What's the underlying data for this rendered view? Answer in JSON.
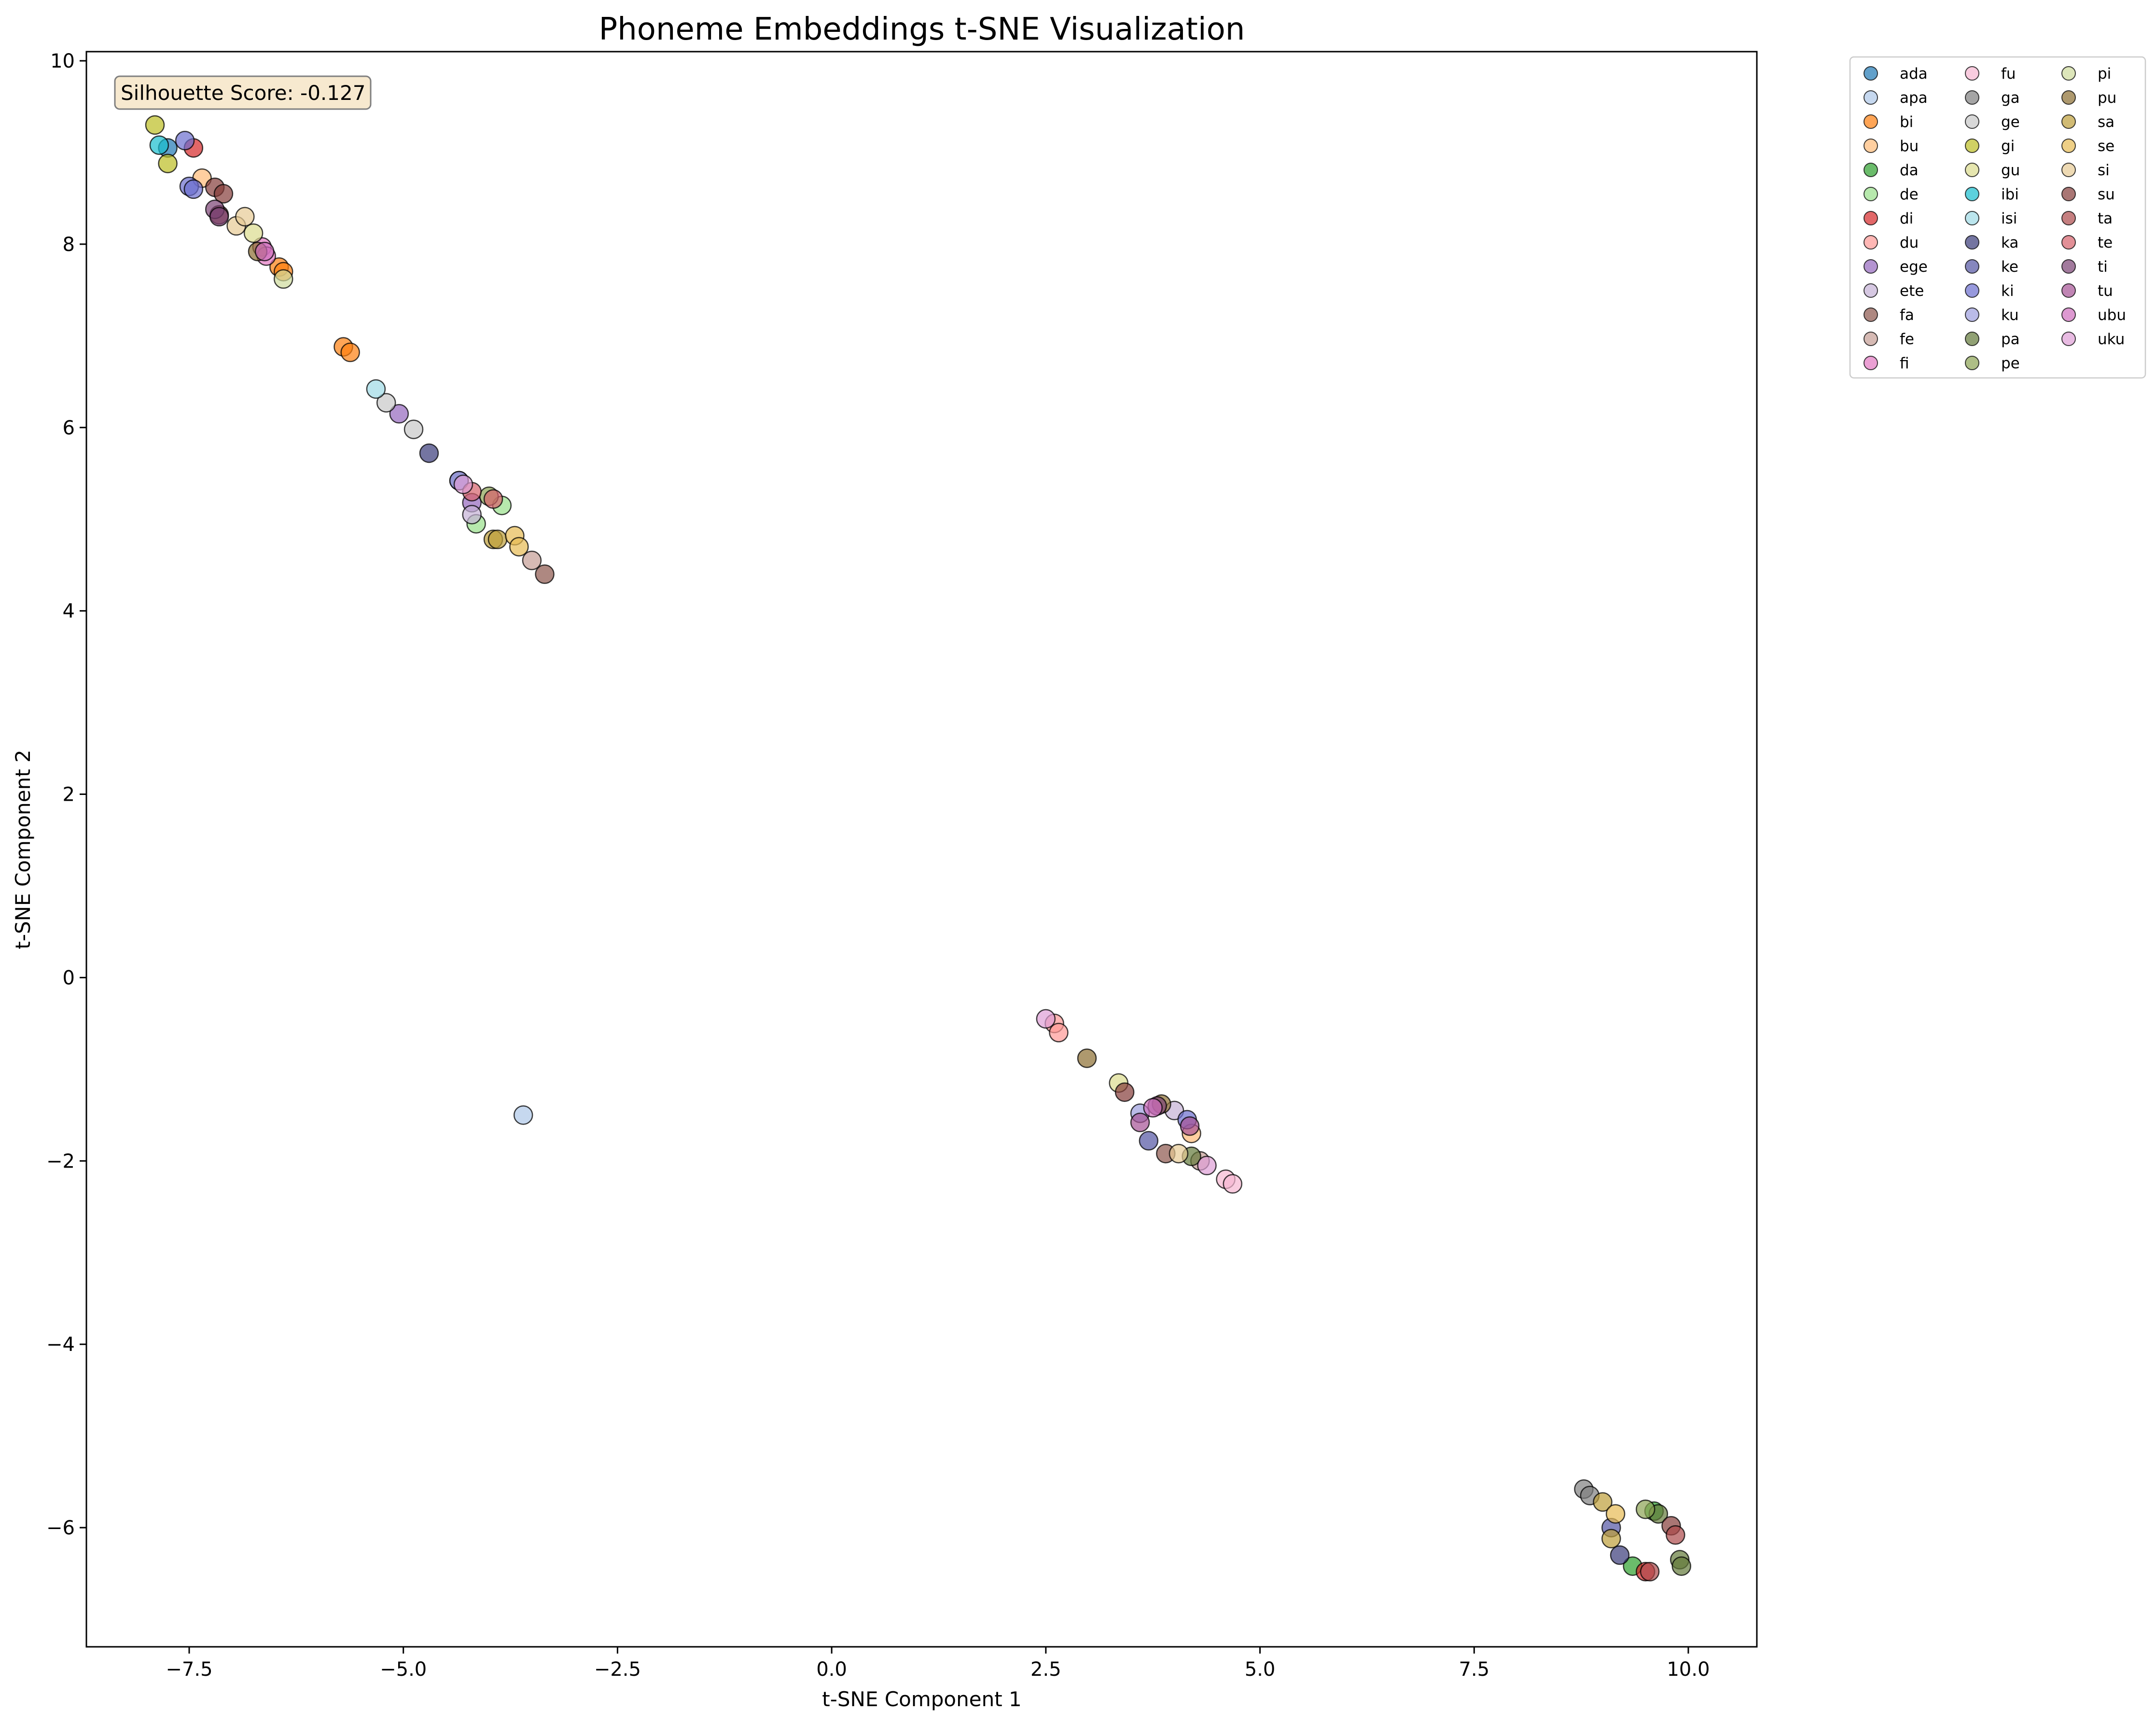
{
  "chart_data": {
    "type": "scatter",
    "title": "Phoneme Embeddings t-SNE Visualization",
    "xlabel": "t-SNE Component 1",
    "ylabel": "t-SNE Component 2",
    "xlim": [
      -8.7,
      10.8
    ],
    "ylim": [
      -7.3,
      10.1
    ],
    "xticks": [
      -7.5,
      -5.0,
      -2.5,
      0.0,
      2.5,
      5.0,
      7.5,
      10.0
    ],
    "xtick_labels": [
      "−7.5",
      "−5.0",
      "−2.5",
      "0.0",
      "2.5",
      "5.0",
      "7.5",
      "10.0"
    ],
    "yticks": [
      -6,
      -4,
      -2,
      0,
      2,
      4,
      6,
      8,
      10
    ],
    "ytick_labels": [
      "−6",
      "−4",
      "−2",
      "0",
      "2",
      "4",
      "6",
      "8",
      "10"
    ],
    "grid": false,
    "legend_position": "outside-top-right",
    "annotation": "Silhouette Score: -0.127",
    "series": [
      {
        "name": "ada",
        "color": "#1f77b4",
        "points": [
          [
            -7.75,
            9.05
          ]
        ]
      },
      {
        "name": "apa",
        "color": "#aec7e8",
        "points": [
          [
            -3.6,
            -1.5
          ]
        ]
      },
      {
        "name": "bi",
        "color": "#ff7f0e",
        "points": [
          [
            -5.7,
            6.88
          ],
          [
            -5.62,
            6.82
          ],
          [
            -6.45,
            7.75
          ],
          [
            -6.4,
            7.7
          ]
        ]
      },
      {
        "name": "bu",
        "color": "#ffbb78",
        "points": [
          [
            4.2,
            -1.7
          ],
          [
            -7.35,
            8.72
          ]
        ]
      },
      {
        "name": "da",
        "color": "#2ca02c",
        "points": [
          [
            9.35,
            -6.42
          ],
          [
            9.6,
            -5.82
          ]
        ]
      },
      {
        "name": "de",
        "color": "#98df8a",
        "points": [
          [
            -4.15,
            4.95
          ],
          [
            -3.85,
            5.15
          ]
        ]
      },
      {
        "name": "di",
        "color": "#d62728",
        "points": [
          [
            -7.45,
            9.05
          ],
          [
            9.5,
            -6.48
          ]
        ]
      },
      {
        "name": "du",
        "color": "#ff9896",
        "points": [
          [
            2.6,
            -0.5
          ],
          [
            2.65,
            -0.6
          ]
        ]
      },
      {
        "name": "ege",
        "color": "#9467bd",
        "points": [
          [
            -5.05,
            6.15
          ],
          [
            -4.2,
            5.18
          ]
        ]
      },
      {
        "name": "ete",
        "color": "#c5b0d5",
        "points": [
          [
            -4.2,
            5.05
          ],
          [
            4.0,
            -1.45
          ]
        ]
      },
      {
        "name": "fa",
        "color": "#8c564b",
        "points": [
          [
            -3.35,
            4.4
          ],
          [
            3.9,
            -1.92
          ]
        ]
      },
      {
        "name": "fe",
        "color": "#c49c94",
        "points": [
          [
            -3.5,
            4.55
          ],
          [
            4.3,
            -2.0
          ]
        ]
      },
      {
        "name": "fi",
        "color": "#e377c2",
        "points": [
          [
            -6.65,
            7.97
          ],
          [
            -6.6,
            7.87
          ]
        ]
      },
      {
        "name": "fu",
        "color": "#f7b6d2",
        "points": [
          [
            4.6,
            -2.2
          ],
          [
            4.68,
            -2.25
          ]
        ]
      },
      {
        "name": "ga",
        "color": "#7f7f7f",
        "points": [
          [
            8.78,
            -5.58
          ],
          [
            8.85,
            -5.65
          ]
        ]
      },
      {
        "name": "ge",
        "color": "#c7c7c7",
        "points": [
          [
            -4.88,
            5.98
          ],
          [
            -5.2,
            6.27
          ]
        ]
      },
      {
        "name": "gi",
        "color": "#bcbd22",
        "points": [
          [
            -7.9,
            9.3
          ],
          [
            -7.75,
            8.88
          ]
        ]
      },
      {
        "name": "gu",
        "color": "#dbdb8d",
        "points": [
          [
            3.35,
            -1.15
          ],
          [
            -6.75,
            8.12
          ]
        ]
      },
      {
        "name": "ibi",
        "color": "#17becf",
        "points": [
          [
            -7.85,
            9.08
          ]
        ]
      },
      {
        "name": "isi",
        "color": "#9edae5",
        "points": [
          [
            -5.32,
            6.42
          ]
        ]
      },
      {
        "name": "ka",
        "color": "#393b79",
        "points": [
          [
            -4.7,
            5.72
          ],
          [
            9.2,
            -6.3
          ]
        ]
      },
      {
        "name": "ke",
        "color": "#5254a3",
        "points": [
          [
            -4.35,
            5.42
          ],
          [
            9.1,
            -6.0
          ],
          [
            3.7,
            -1.78
          ]
        ]
      },
      {
        "name": "ki",
        "color": "#6b6ecf",
        "points": [
          [
            -7.55,
            9.13
          ],
          [
            -7.5,
            8.63
          ],
          [
            -7.45,
            8.6
          ],
          [
            4.15,
            -1.55
          ]
        ]
      },
      {
        "name": "ku",
        "color": "#9c9ede",
        "points": [
          [
            -4.35,
            5.42
          ],
          [
            3.6,
            -1.48
          ]
        ]
      },
      {
        "name": "pa",
        "color": "#637939",
        "points": [
          [
            9.9,
            -6.35
          ],
          [
            9.92,
            -6.42
          ],
          [
            9.65,
            -5.85
          ],
          [
            4.2,
            -1.95
          ]
        ]
      },
      {
        "name": "pe",
        "color": "#8ca252",
        "points": [
          [
            -4.0,
            5.25
          ],
          [
            9.5,
            -5.8
          ]
        ]
      },
      {
        "name": "pi",
        "color": "#cedb9c",
        "points": [
          [
            -6.4,
            7.62
          ]
        ]
      },
      {
        "name": "pu",
        "color": "#8c6d31",
        "points": [
          [
            2.98,
            -0.88
          ],
          [
            3.85,
            -1.38
          ],
          [
            -6.7,
            7.92
          ]
        ]
      },
      {
        "name": "sa",
        "color": "#bd9e39",
        "points": [
          [
            -3.95,
            4.78
          ],
          [
            -3.9,
            4.78
          ],
          [
            9.0,
            -5.72
          ],
          [
            9.1,
            -6.12
          ]
        ]
      },
      {
        "name": "se",
        "color": "#e7ba52",
        "points": [
          [
            -3.7,
            4.82
          ],
          [
            -3.65,
            4.7
          ],
          [
            9.15,
            -5.85
          ]
        ]
      },
      {
        "name": "si",
        "color": "#e7cb94",
        "points": [
          [
            -6.95,
            8.2
          ],
          [
            -6.85,
            8.3
          ],
          [
            4.05,
            -1.92
          ]
        ]
      },
      {
        "name": "su",
        "color": "#843c39",
        "points": [
          [
            -7.2,
            8.62
          ],
          [
            -7.1,
            8.55
          ],
          [
            -7.15,
            8.32
          ],
          [
            3.42,
            -1.25
          ],
          [
            9.8,
            -5.98
          ]
        ]
      },
      {
        "name": "ta",
        "color": "#ad494a",
        "points": [
          [
            9.85,
            -6.08
          ],
          [
            9.55,
            -6.48
          ]
        ]
      },
      {
        "name": "te",
        "color": "#d6616b",
        "points": [
          [
            -4.2,
            5.3
          ],
          [
            -3.95,
            5.22
          ]
        ]
      },
      {
        "name": "ti",
        "color": "#7b4173",
        "points": [
          [
            -7.2,
            8.38
          ],
          [
            -7.15,
            8.3
          ],
          [
            3.8,
            -1.4
          ]
        ]
      },
      {
        "name": "tu",
        "color": "#a55194",
        "points": [
          [
            3.6,
            -1.58
          ],
          [
            4.18,
            -1.62
          ]
        ]
      },
      {
        "name": "ubu",
        "color": "#ce6dbd",
        "points": [
          [
            3.75,
            -1.42
          ],
          [
            -6.62,
            7.92
          ]
        ]
      },
      {
        "name": "uku",
        "color": "#de9ed6",
        "points": [
          [
            2.5,
            -0.45
          ],
          [
            -4.3,
            5.38
          ],
          [
            4.38,
            -2.05
          ]
        ]
      }
    ]
  }
}
